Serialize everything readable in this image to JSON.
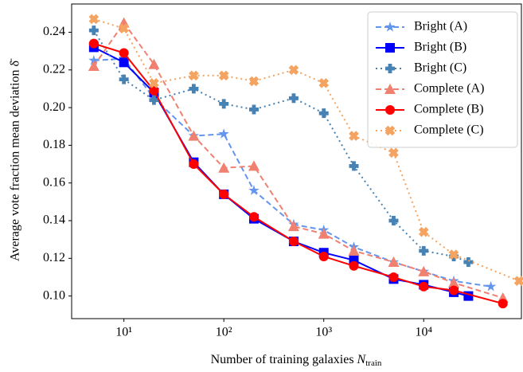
{
  "chart_data": {
    "type": "line",
    "xlabel": "Number of training galaxies",
    "xlabel_symbol": "N",
    "xlabel_subscript": "train",
    "ylabel": "Average vote fraction mean deviation δ̄",
    "xscale": "log",
    "xlim": [
      3,
      95000
    ],
    "ylim": [
      0.088,
      0.255
    ],
    "xticks": [
      {
        "value": 10,
        "label": "10¹"
      },
      {
        "value": 100,
        "label": "10²"
      },
      {
        "value": 1000,
        "label": "10³"
      },
      {
        "value": 10000,
        "label": "10⁴"
      }
    ],
    "yticks": [
      {
        "value": 0.1,
        "label": "0.10"
      },
      {
        "value": 0.12,
        "label": "0.12"
      },
      {
        "value": 0.14,
        "label": "0.14"
      },
      {
        "value": 0.16,
        "label": "0.16"
      },
      {
        "value": 0.18,
        "label": "0.18"
      },
      {
        "value": 0.2,
        "label": "0.20"
      },
      {
        "value": 0.22,
        "label": "0.22"
      },
      {
        "value": 0.24,
        "label": "0.24"
      }
    ],
    "legend": "upper right",
    "series": [
      {
        "name": "Bright (A)",
        "color": "#6495ed",
        "dash": "dashed",
        "marker": "star",
        "x": [
          5,
          10,
          20,
          50,
          100,
          200,
          500,
          1000,
          2000,
          5000,
          10000,
          20000,
          47000
        ],
        "values": [
          0.225,
          0.226,
          0.205,
          0.185,
          0.186,
          0.156,
          0.138,
          0.135,
          0.126,
          0.118,
          0.113,
          0.108,
          0.105
        ]
      },
      {
        "name": "Bright (B)",
        "color": "#0000ff",
        "dash": "solid",
        "marker": "square",
        "x": [
          5,
          10,
          20,
          50,
          100,
          200,
          500,
          1000,
          2000,
          5000,
          10000,
          20000,
          28000
        ],
        "values": [
          0.232,
          0.224,
          0.208,
          0.171,
          0.154,
          0.141,
          0.129,
          0.123,
          0.119,
          0.109,
          0.106,
          0.102,
          0.1
        ]
      },
      {
        "name": "Bright (C)",
        "color": "#4682b4",
        "dash": "dotted",
        "marker": "plus",
        "x": [
          5,
          10,
          20,
          50,
          100,
          200,
          500,
          1000,
          2000,
          5000,
          10000,
          20000,
          28000
        ],
        "values": [
          0.241,
          0.215,
          0.204,
          0.21,
          0.202,
          0.199,
          0.205,
          0.197,
          0.169,
          0.14,
          0.124,
          0.121,
          0.118
        ]
      },
      {
        "name": "Complete (A)",
        "color": "#f08070",
        "dash": "dashed",
        "marker": "triangle",
        "x": [
          5,
          10,
          20,
          50,
          100,
          200,
          500,
          1000,
          2000,
          5000,
          10000,
          20000,
          62000
        ],
        "values": [
          0.222,
          0.245,
          0.223,
          0.185,
          0.168,
          0.169,
          0.137,
          0.133,
          0.124,
          0.118,
          0.113,
          0.107,
          0.099
        ]
      },
      {
        "name": "Complete (B)",
        "color": "#ff0000",
        "dash": "solid",
        "marker": "circle",
        "x": [
          5,
          10,
          20,
          50,
          100,
          200,
          500,
          1000,
          2000,
          5000,
          10000,
          20000,
          62000
        ],
        "values": [
          0.234,
          0.229,
          0.209,
          0.17,
          0.154,
          0.142,
          0.129,
          0.121,
          0.116,
          0.11,
          0.105,
          0.103,
          0.096
        ]
      },
      {
        "name": "Complete (C)",
        "color": "#f4a460",
        "dash": "dotted",
        "marker": "x",
        "x": [
          5,
          10,
          20,
          50,
          100,
          200,
          500,
          1000,
          2000,
          5000,
          10000,
          20000,
          90000
        ],
        "values": [
          0.247,
          0.242,
          0.213,
          0.217,
          0.217,
          0.214,
          0.22,
          0.213,
          0.185,
          0.176,
          0.134,
          0.122,
          0.108
        ]
      }
    ]
  }
}
